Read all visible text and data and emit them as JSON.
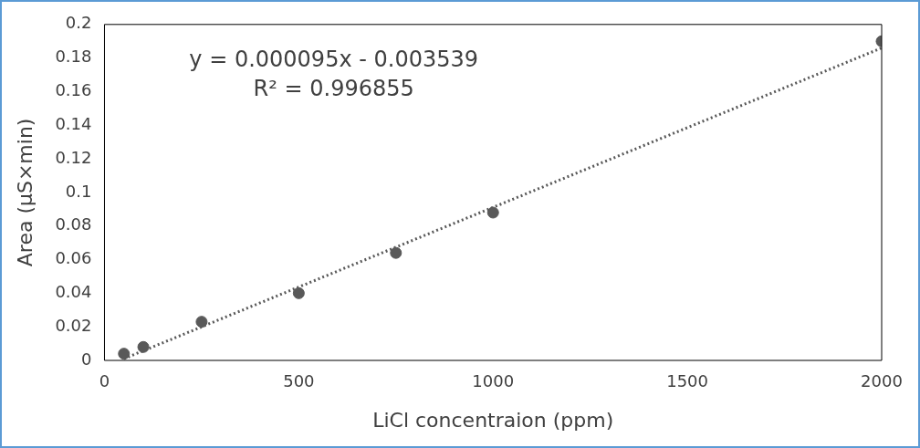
{
  "chart_data": {
    "type": "scatter",
    "xlabel": "LiCl concentraion (ppm)",
    "ylabel": "Area (µS×min)",
    "annotations": [
      "y = 0.000095x - 0.003539",
      "R² = 0.996855"
    ],
    "x": [
      50,
      100,
      250,
      500,
      750,
      1000,
      2000
    ],
    "series": [
      {
        "color": "#595959",
        "values": [
          0.004,
          0.008,
          0.023,
          0.04,
          0.064,
          0.088,
          0.19
        ],
        "marker": "circle"
      },
      {
        "type": "line",
        "color": "#595959",
        "line_style": "dotted",
        "marker": "none",
        "x": [
          50,
          2000
        ],
        "values": [
          0.001,
          0.186
        ]
      }
    ],
    "xlim": [
      0,
      2000
    ],
    "xticks": [
      0,
      500,
      1000,
      1500,
      2000
    ],
    "ylim": [
      0,
      0.2
    ],
    "yticks": [
      0,
      0.02,
      0.04,
      0.06,
      0.08,
      0.1,
      0.12,
      0.14,
      0.16,
      0.18,
      0.2
    ],
    "grid": false,
    "legend": false
  }
}
